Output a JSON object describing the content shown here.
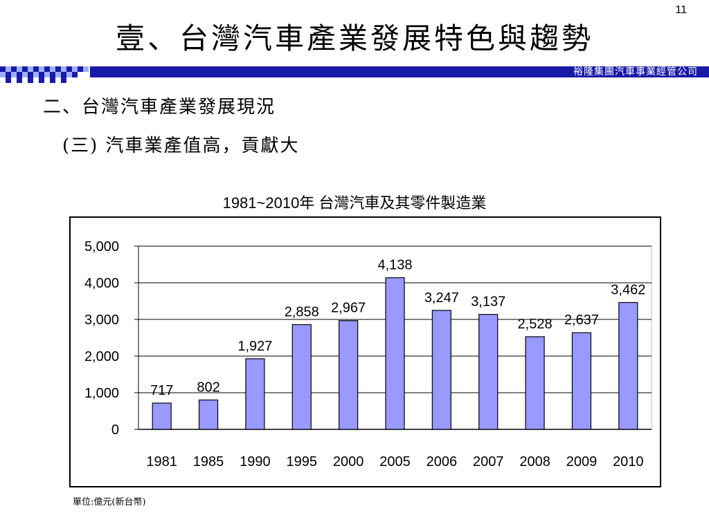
{
  "page_number": "11",
  "main_title": "壹、台灣汽車產業發展特色與趨勢",
  "company": "裕隆集團汽車事業經管公司",
  "section_heading": "二、台灣汽車產業發展現況",
  "sub_heading": "(三) 汽車業產值高，貢獻大",
  "unit_note": "單位:億元(新台幣)",
  "colors": {
    "banner": "#1a1aa8",
    "bar_fill": "#9999ff",
    "bar_stroke": "#000000"
  },
  "chart_data": {
    "type": "bar",
    "title": "1981~2010年 台灣汽車及其零件製造業",
    "categories": [
      "1981",
      "1985",
      "1990",
      "1995",
      "2000",
      "2005",
      "2006",
      "2007",
      "2008",
      "2009",
      "2010"
    ],
    "values": [
      717,
      802,
      1927,
      2858,
      2967,
      4138,
      3247,
      3137,
      2528,
      2637,
      3462
    ],
    "value_labels": [
      "717",
      "802",
      "1,927",
      "2,858",
      "2,967",
      "4,138",
      "3,247",
      "3,137",
      "2,528",
      "2,637",
      "3,462"
    ],
    "ylim": [
      0,
      5000
    ],
    "yticks": [
      0,
      1000,
      2000,
      3000,
      4000,
      5000
    ],
    "ytick_labels": [
      "0",
      "1,000",
      "2,000",
      "3,000",
      "4,000",
      "5,000"
    ],
    "grid": true,
    "legend": "none"
  }
}
